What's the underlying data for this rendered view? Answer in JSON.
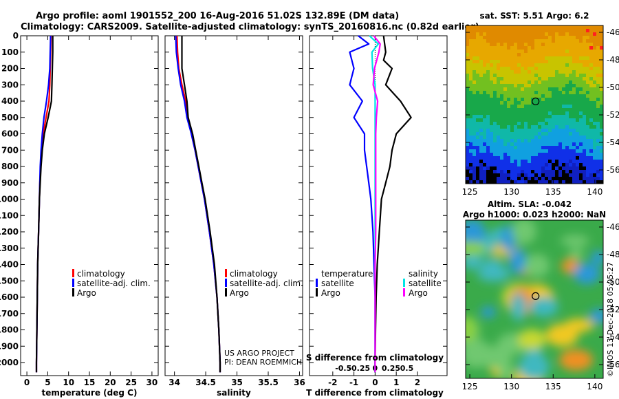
{
  "header": {
    "line1": "Argo profile: aoml 1901552_200 16-Aug-2016 51.02S 132.89E (DM data)",
    "line2": "Climatology: CARS2009. Satellite-adjusted climatology: synTS_20160816.nc (0.82d earlier)"
  },
  "colors": {
    "climatology": "#ff0000",
    "satellite": "#0000ff",
    "argo": "#000000",
    "salinity_satellite": "#00e5e5",
    "salinity_argo": "#ff00ff"
  },
  "depth_axis": {
    "ticks": [
      "0",
      "100",
      "200",
      "300",
      "400",
      "500",
      "600",
      "700",
      "800",
      "900",
      "1000",
      "1100",
      "1200",
      "1300",
      "1400",
      "1500",
      "1600",
      "1700",
      "1800",
      "1900",
      "2000"
    ]
  },
  "chart_data": [
    {
      "type": "line",
      "name": "temperature",
      "xlabel": "temperature (deg C)",
      "xlim": [
        -1.5,
        31.5
      ],
      "xticks": [
        "0",
        "5",
        "10",
        "15",
        "20",
        "25",
        "30"
      ],
      "ylim": [
        0,
        2080
      ],
      "legend": {
        "position": "bottom-right",
        "entries": [
          "climatology",
          "satellite-adj. clim.",
          "Argo"
        ]
      },
      "series": [
        {
          "name": "climatology",
          "color_key": "climatology",
          "depth": [
            0,
            100,
            200,
            300,
            400,
            500,
            600,
            700,
            800,
            900,
            1000,
            1200,
            1400,
            1600,
            1800,
            2000,
            2060
          ],
          "values": [
            5.8,
            5.7,
            5.6,
            5.5,
            5.3,
            4.6,
            3.9,
            3.5,
            3.3,
            3.1,
            3.0,
            2.8,
            2.6,
            2.5,
            2.4,
            2.3,
            2.3
          ]
        },
        {
          "name": "satellite-adj. clim.",
          "color_key": "satellite",
          "depth": [
            0,
            100,
            200,
            300,
            400,
            500,
            600,
            700,
            800,
            900,
            1000,
            1200,
            1400,
            1600,
            1800,
            2000,
            2060
          ],
          "values": [
            5.7,
            5.6,
            5.5,
            5.2,
            4.7,
            4.1,
            3.7,
            3.4,
            3.2,
            3.1,
            3.0,
            2.8,
            2.6,
            2.5,
            2.4,
            2.3,
            2.3
          ]
        },
        {
          "name": "Argo",
          "color_key": "argo",
          "depth": [
            0,
            100,
            200,
            300,
            400,
            500,
            600,
            700,
            800,
            900,
            1000,
            1200,
            1400,
            1600,
            1800,
            2000,
            2060
          ],
          "values": [
            6.2,
            6.2,
            6.1,
            6.0,
            5.9,
            5.1,
            4.2,
            3.7,
            3.4,
            3.2,
            3.0,
            2.8,
            2.6,
            2.5,
            2.4,
            2.3,
            2.3
          ]
        }
      ]
    },
    {
      "type": "line",
      "name": "salinity",
      "xlabel": "salinity",
      "xlim": [
        33.85,
        36.05
      ],
      "xticks": [
        "34",
        "34.5",
        "35",
        "35.5",
        "36"
      ],
      "ylim": [
        0,
        2080
      ],
      "legend": {
        "position": "bottom-right",
        "entries": [
          "climatology",
          "satellite-adj. clim.",
          "Argo"
        ]
      },
      "series": [
        {
          "name": "climatology",
          "color_key": "climatology",
          "depth": [
            0,
            100,
            200,
            300,
            400,
            500,
            600,
            700,
            800,
            900,
            1000,
            1200,
            1400,
            1600,
            1800,
            2000,
            2060
          ],
          "values": [
            34.04,
            34.05,
            34.07,
            34.12,
            34.18,
            34.22,
            34.27,
            34.33,
            34.38,
            34.43,
            34.48,
            34.56,
            34.63,
            34.68,
            34.71,
            34.73,
            34.73
          ]
        },
        {
          "name": "satellite-adj. clim.",
          "color_key": "satellite",
          "depth": [
            0,
            100,
            200,
            300,
            400,
            500,
            600,
            700,
            800,
            900,
            1000,
            1200,
            1400,
            1600,
            1800,
            2000,
            2060
          ],
          "values": [
            34.02,
            34.03,
            34.06,
            34.1,
            34.16,
            34.2,
            34.27,
            34.33,
            34.38,
            34.43,
            34.48,
            34.56,
            34.63,
            34.68,
            34.71,
            34.73,
            34.73
          ]
        },
        {
          "name": "Argo",
          "color_key": "argo",
          "depth": [
            0,
            100,
            200,
            300,
            400,
            500,
            600,
            700,
            800,
            900,
            1000,
            1200,
            1400,
            1600,
            1800,
            2000,
            2060
          ],
          "values": [
            34.12,
            34.12,
            34.12,
            34.16,
            34.2,
            34.22,
            34.29,
            34.34,
            34.39,
            34.44,
            34.49,
            34.57,
            34.64,
            34.68,
            34.71,
            34.73,
            34.73
          ]
        }
      ]
    },
    {
      "type": "line",
      "name": "difference",
      "xlabel": "T difference from climatology",
      "xlabel_top": "S difference from climatology",
      "xlim_T": [
        -3.1,
        3.4
      ],
      "xticks_T": [
        "-2",
        "-1",
        "0",
        "1",
        "2"
      ],
      "xticks_S": [
        "-0.5",
        "-0.25",
        "0",
        "0.25",
        "0.5"
      ],
      "ylim": [
        0,
        2080
      ],
      "legend": {
        "temperature_title": "temperature",
        "salinity_title": "salinity",
        "entries_T": [
          "satellite",
          "Argo"
        ],
        "entries_S": [
          "satellite",
          "Argo"
        ]
      },
      "series": [
        {
          "name": "satellite",
          "quantity": "temperature",
          "color_key": "satellite",
          "depth": [
            0,
            50,
            100,
            200,
            250,
            300,
            400,
            500,
            600,
            700,
            800,
            900,
            1000,
            1200,
            1400,
            1600,
            1800,
            2000,
            2060
          ],
          "values": [
            -0.8,
            -0.3,
            -1.2,
            -1.0,
            -1.1,
            -1.2,
            -0.6,
            -1.0,
            -0.5,
            -0.5,
            -0.4,
            -0.3,
            -0.2,
            -0.1,
            -0.05,
            0,
            0,
            0,
            0
          ]
        },
        {
          "name": "Argo",
          "quantity": "temperature",
          "color_key": "argo",
          "depth": [
            0,
            100,
            150,
            200,
            300,
            400,
            500,
            600,
            700,
            800,
            900,
            1000,
            1200,
            1400,
            1600,
            1800,
            2000,
            2060
          ],
          "values": [
            0.4,
            0.5,
            0.4,
            0.8,
            0.5,
            1.2,
            1.7,
            1.0,
            0.8,
            0.7,
            0.5,
            0.3,
            0.2,
            0.1,
            0.05,
            0.02,
            0,
            0
          ]
        },
        {
          "name": "satellite",
          "quantity": "salinity",
          "color_key": "salinity_satellite",
          "depth": [
            0,
            50,
            100,
            200,
            300,
            400,
            500,
            600,
            800,
            1000,
            1200,
            1400,
            1600,
            1800,
            2000,
            2060
          ],
          "values": [
            -0.09,
            0.05,
            -0.05,
            -0.04,
            0.0,
            0.0,
            0.0,
            0.0,
            0.0,
            0.0,
            0.0,
            0.0,
            0.0,
            0.0,
            0.0,
            0.0
          ]
        },
        {
          "name": "Argo",
          "quantity": "salinity",
          "color_key": "salinity_argo",
          "depth": [
            0,
            50,
            100,
            200,
            300,
            400,
            500,
            600,
            800,
            1000,
            1200,
            1400,
            1600,
            1800,
            2000,
            2060
          ],
          "values": [
            -0.02,
            0.08,
            0.06,
            -0.01,
            -0.03,
            0.04,
            0.02,
            0.01,
            0.01,
            0.01,
            0.01,
            0.0,
            0.0,
            0.0,
            0.0,
            0.0
          ]
        }
      ]
    }
  ],
  "sst_map": {
    "title": "sat. SST: 5.51 Argo: 6.2",
    "lat_ticks": [
      "-46",
      "-48",
      "-50",
      "-52",
      "-54",
      "-56"
    ],
    "lon_ticks": [
      "125",
      "130",
      "135",
      "140"
    ],
    "marker_lon": 132.89,
    "marker_lat": -51.02
  },
  "sla_map": {
    "title1": "Altim. SLA: -0.042",
    "title2": "Argo h1000: 0.023 h2000: NaN",
    "lat_ticks": [
      "-46",
      "-48",
      "-50",
      "-52",
      "-54",
      "-56"
    ],
    "lon_ticks": [
      "125",
      "130",
      "135",
      "140"
    ],
    "marker_lon": 132.89,
    "marker_lat": -51.02
  },
  "footer": {
    "project": "US ARGO PROJECT",
    "pi": "PI: DEAN ROEMMICH",
    "credit": "©IMOS 13-Dec-2018 05:05:27"
  }
}
